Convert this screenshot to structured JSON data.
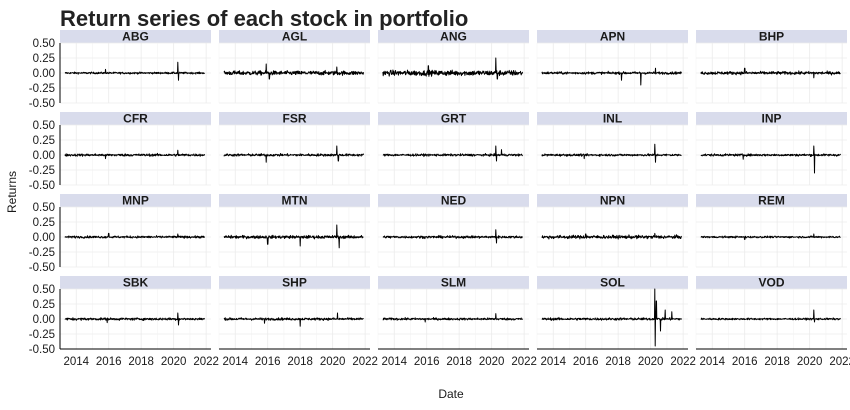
{
  "chart_data": {
    "type": "line",
    "title": "Return series of each stock in portfolio",
    "xlabel": "Date",
    "ylabel": "Returns",
    "ylim": [
      -0.5,
      0.5
    ],
    "xlim": [
      2013,
      2022.3
    ],
    "y_ticks": [
      0.5,
      0.25,
      0,
      -0.25,
      -0.5
    ],
    "y_tick_labels": [
      "0.50",
      "0.25",
      "0.00",
      "-0.25",
      "-0.50"
    ],
    "x_ticks": [
      2014,
      2016,
      2018,
      2020,
      2022
    ],
    "x_tick_labels": [
      "2014",
      "2016",
      "2018",
      "2020",
      "2022"
    ],
    "grid": true,
    "facet_layout": "4 rows x 5 columns",
    "strip_color": "#d9dcec",
    "line_color": "#000000",
    "series": [
      {
        "name": "ABG",
        "base": 0.015,
        "spikes": [
          [
            2020.25,
            0.18
          ],
          [
            2020.3,
            -0.12
          ],
          [
            2015.8,
            0.06
          ]
        ]
      },
      {
        "name": "AGL",
        "base": 0.035,
        "spikes": [
          [
            2015.9,
            0.15
          ],
          [
            2016.1,
            -0.1
          ],
          [
            2020.25,
            0.1
          ]
        ]
      },
      {
        "name": "ANG",
        "base": 0.045,
        "spikes": [
          [
            2020.25,
            0.25
          ],
          [
            2020.35,
            -0.1
          ],
          [
            2016.1,
            0.12
          ]
        ]
      },
      {
        "name": "APN",
        "base": 0.02,
        "spikes": [
          [
            2019.4,
            -0.2
          ],
          [
            2018.2,
            -0.12
          ],
          [
            2020.3,
            0.08
          ]
        ]
      },
      {
        "name": "BHP",
        "base": 0.025,
        "spikes": [
          [
            2016.0,
            0.08
          ],
          [
            2020.25,
            -0.08
          ]
        ]
      },
      {
        "name": "CFR",
        "base": 0.02,
        "spikes": [
          [
            2020.25,
            0.08
          ],
          [
            2015.8,
            -0.06
          ]
        ]
      },
      {
        "name": "FSR",
        "base": 0.02,
        "spikes": [
          [
            2020.25,
            0.15
          ],
          [
            2015.9,
            -0.12
          ],
          [
            2020.35,
            -0.1
          ]
        ]
      },
      {
        "name": "GRT",
        "base": 0.018,
        "spikes": [
          [
            2020.25,
            0.15
          ],
          [
            2020.3,
            -0.1
          ],
          [
            2020.6,
            0.09
          ]
        ]
      },
      {
        "name": "INL",
        "base": 0.018,
        "spikes": [
          [
            2020.25,
            0.18
          ],
          [
            2020.3,
            -0.12
          ],
          [
            2015.9,
            -0.06
          ]
        ]
      },
      {
        "name": "INP",
        "base": 0.018,
        "spikes": [
          [
            2020.25,
            0.15
          ],
          [
            2020.3,
            -0.3
          ],
          [
            2015.9,
            -0.07
          ]
        ]
      },
      {
        "name": "MNP",
        "base": 0.018,
        "spikes": [
          [
            2016.0,
            0.06
          ],
          [
            2020.25,
            0.05
          ]
        ]
      },
      {
        "name": "MTN",
        "base": 0.025,
        "spikes": [
          [
            2020.25,
            0.2
          ],
          [
            2020.4,
            -0.18
          ],
          [
            2018.0,
            -0.15
          ],
          [
            2016.0,
            -0.12
          ]
        ]
      },
      {
        "name": "NED",
        "base": 0.02,
        "spikes": [
          [
            2020.25,
            0.12
          ],
          [
            2020.3,
            -0.1
          ]
        ]
      },
      {
        "name": "NPN",
        "base": 0.028,
        "spikes": [
          [
            2020.25,
            0.06
          ],
          [
            2016.0,
            0.05
          ]
        ]
      },
      {
        "name": "REM",
        "base": 0.015,
        "spikes": [
          [
            2020.25,
            0.05
          ],
          [
            2016.0,
            -0.04
          ]
        ]
      },
      {
        "name": "SBK",
        "base": 0.02,
        "spikes": [
          [
            2020.25,
            0.1
          ],
          [
            2020.3,
            -0.1
          ],
          [
            2015.9,
            -0.06
          ]
        ]
      },
      {
        "name": "SHP",
        "base": 0.02,
        "spikes": [
          [
            2020.3,
            0.1
          ],
          [
            2018.0,
            -0.12
          ],
          [
            2015.8,
            -0.07
          ]
        ]
      },
      {
        "name": "SLM",
        "base": 0.018,
        "spikes": [
          [
            2020.25,
            0.09
          ],
          [
            2015.9,
            -0.05
          ]
        ]
      },
      {
        "name": "SOL",
        "base": 0.02,
        "spikes": [
          [
            2020.25,
            0.55
          ],
          [
            2020.28,
            -0.45
          ],
          [
            2020.35,
            0.3
          ],
          [
            2020.6,
            -0.2
          ],
          [
            2020.9,
            0.15
          ],
          [
            2021.3,
            0.12
          ]
        ]
      },
      {
        "name": "VOD",
        "base": 0.015,
        "spikes": [
          [
            2020.25,
            0.15
          ],
          [
            2020.3,
            -0.05
          ]
        ]
      }
    ]
  }
}
